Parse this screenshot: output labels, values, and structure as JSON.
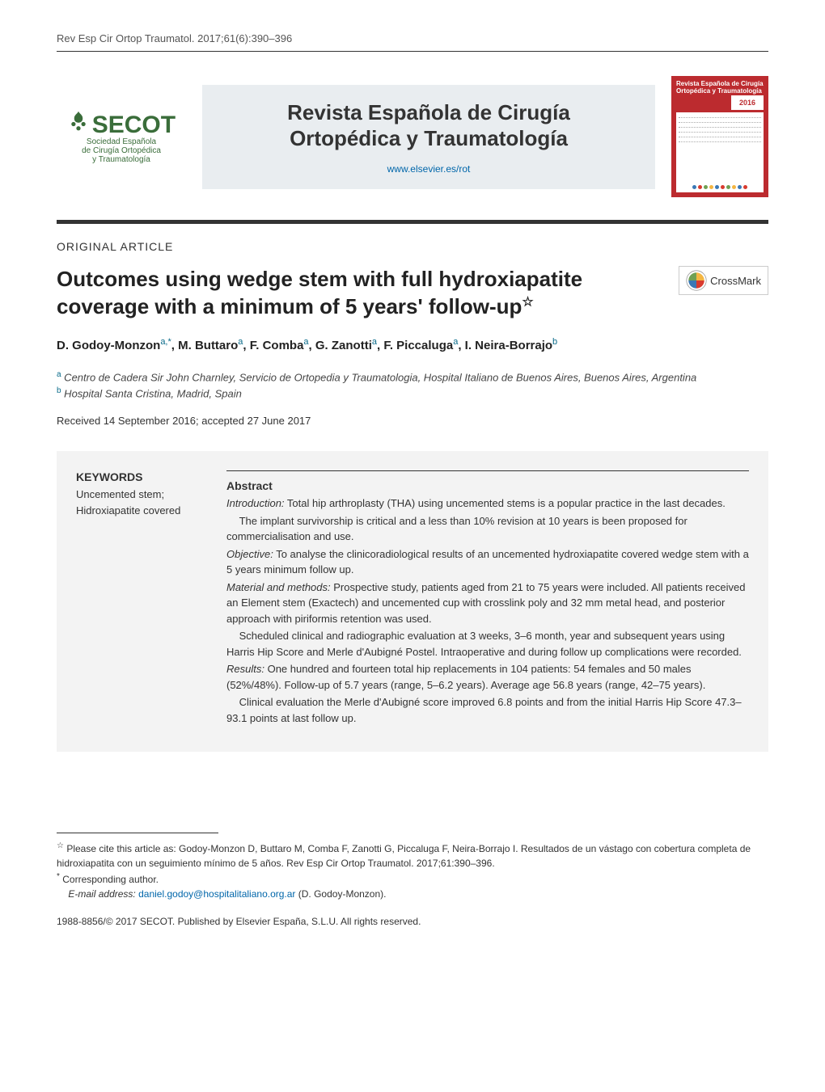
{
  "header": {
    "citation_line": "Rev Esp Cir Ortop Traumatol. 2017;61(6):390–396"
  },
  "masthead": {
    "logo_text": "SECOT",
    "logo_subtext_1": "Sociedad Española",
    "logo_subtext_2": "de Cirugía Ortopédica",
    "logo_subtext_3": "y Traumatología",
    "journal_title_line1": "Revista Española de Cirugía",
    "journal_title_line2": "Ortopédica y Traumatología",
    "journal_url": "www.elsevier.es/rot",
    "cover": {
      "title": "Revista Española de Cirugía Ortopédica y Traumatología",
      "year": "2016"
    }
  },
  "article": {
    "type": "ORIGINAL ARTICLE",
    "title": "Outcomes using wedge stem with full hydroxiapatite coverage with a minimum of 5 years' follow-up",
    "title_star": "☆",
    "crossmark_label": "CrossMark",
    "authors_html": "D. Godoy-Monzon<sup>a,*</sup>, M. Buttaro<sup>a</sup>, F. Comba<sup>a</sup>, G. Zanotti<sup>a</sup>, F. Piccaluga<sup>a</sup>, I. Neira-Borrajo<sup>b</sup>",
    "affiliations": [
      {
        "sup": "a",
        "text": "Centro de Cadera Sir John Charnley, Servicio de Ortopedia y Traumatologia, Hospital Italiano de Buenos Aires, Buenos Aires, Argentina"
      },
      {
        "sup": "b",
        "text": "Hospital Santa Cristina, Madrid, Spain"
      }
    ],
    "dates": "Received 14 September 2016; accepted 27 June 2017"
  },
  "keywords": {
    "heading": "KEYWORDS",
    "items": "Uncemented stem;\nHidroxiapatite covered"
  },
  "abstract": {
    "heading": "Abstract",
    "paragraphs": [
      {
        "label": "Introduction:",
        "text": " Total hip arthroplasty (THA) using uncemented stems is a popular practice in the last decades."
      },
      {
        "indent": true,
        "text": "The implant survivorship is critical and a less than 10% revision at 10 years is been proposed for commercialisation and use."
      },
      {
        "label": "Objective:",
        "text": " To analyse the clinicoradiological results of an uncemented hydroxiapatite covered wedge stem with a 5 years minimum follow up."
      },
      {
        "label": "Material and methods:",
        "text": " Prospective study, patients aged from 21 to 75 years were included. All patients received an Element stem (Exactech) and uncemented cup with crosslink poly and 32 mm metal head, and posterior approach with piriformis retention was used."
      },
      {
        "indent": true,
        "text": "Scheduled clinical and radiographic evaluation at 3 weeks, 3–6 month, year and subsequent years using Harris Hip Score and Merle d'Aubigné Postel. Intraoperative and during follow up complications were recorded."
      },
      {
        "label": "Results:",
        "text": " One hundred and fourteen total hip replacements in 104 patients: 54 females and 50 males (52%/48%). Follow-up of 5.7 years (range, 5–6.2 years). Average age 56.8 years (range, 42–75 years)."
      },
      {
        "indent": true,
        "text": "Clinical evaluation the Merle d'Aubigné score improved 6.8 points and from the initial Harris Hip Score 47.3–93.1 points at last follow up."
      }
    ]
  },
  "footnotes": {
    "star": "☆",
    "cite_as": "Please cite this article as: Godoy-Monzon D, Buttaro M, Comba F, Zanotti G, Piccaluga F, Neira-Borrajo I. Resultados de un vástago con cobertura completa de hidroxiapatita con un seguimiento mínimo de 5 años. Rev Esp Cir Ortop Traumatol. 2017;61:390–396.",
    "corresponding": "Corresponding author.",
    "email_label": "E-mail address:",
    "email": "daniel.godoy@hospitalitaliano.org.ar",
    "email_paren": "(D. Godoy-Monzon)."
  },
  "copyright": "1988-8856/© 2017 SECOT. Published by Elsevier España, S.L.U. All rights reserved.",
  "colors": {
    "accent_green": "#3a6d3a",
    "cover_red": "#bc2b2f",
    "link_blue": "#0066aa",
    "sup_teal": "#0a6b8a",
    "abstract_bg": "#f3f3f3",
    "crossmark_red": "#d93a2e",
    "crossmark_blue": "#3a78b5",
    "crossmark_yellow": "#f4b642",
    "crossmark_green": "#6fa053"
  }
}
